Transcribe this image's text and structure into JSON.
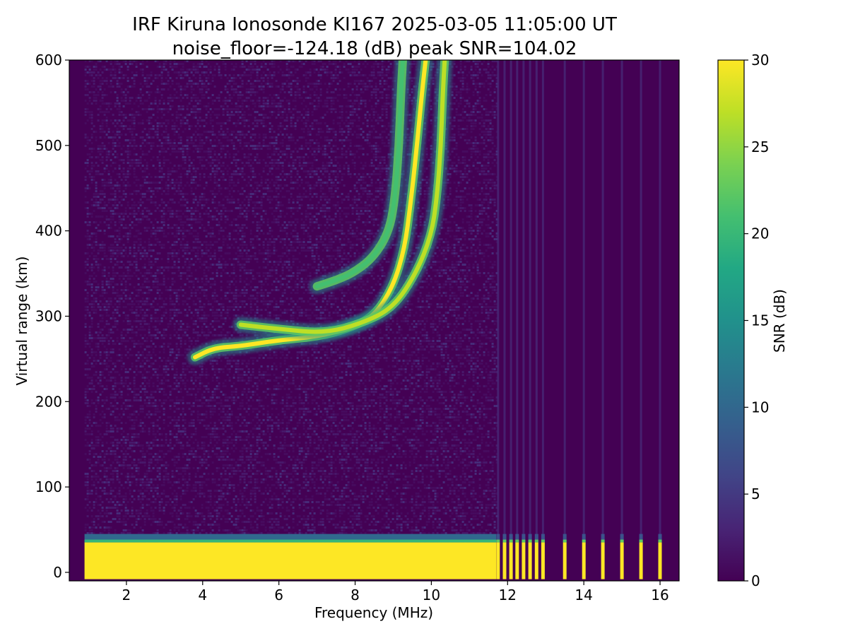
{
  "chart_data": {
    "type": "heatmap",
    "title": "IRF Kiruna Ionosonde KI167 2025-03-05 11:05:00  UT",
    "subtitle": "noise_floor=-124.18 (dB) peak SNR=104.02",
    "xlabel": "Frequency (MHz)",
    "ylabel": "Virtual range (km)",
    "colorbar_label": "SNR (dB)",
    "xlim": [
      0.5,
      16.5
    ],
    "ylim": [
      -10,
      600
    ],
    "clim": [
      0,
      30
    ],
    "colormap": "viridis",
    "background_color": "#440154",
    "x_ticks": [
      2,
      4,
      6,
      8,
      10,
      12,
      14,
      16
    ],
    "y_ticks": [
      0,
      100,
      200,
      300,
      400,
      500,
      600
    ],
    "colorbar_ticks": [
      0,
      5,
      10,
      15,
      20,
      25,
      30
    ],
    "sweep_start_mhz": 0.9,
    "dense_sweep_end_mhz": 11.7,
    "ground_band": {
      "range_km": [
        -8,
        35
      ],
      "snr_db": 30
    },
    "sparse_channels_mhz": [
      11.75,
      11.92,
      12.09,
      12.25,
      12.42,
      12.59,
      12.76,
      12.93,
      13.5,
      14.0,
      14.5,
      15.0,
      15.5,
      16.0
    ],
    "traces": [
      {
        "points": [
          [
            3.8,
            252
          ],
          [
            4.3,
            263
          ],
          [
            5.0,
            265
          ],
          [
            6.0,
            272
          ],
          [
            7.0,
            276
          ],
          [
            7.8,
            285
          ],
          [
            8.5,
            300
          ],
          [
            9.0,
            335
          ],
          [
            9.3,
            380
          ],
          [
            9.45,
            430
          ],
          [
            9.6,
            490
          ],
          [
            9.75,
            560
          ],
          [
            9.85,
            600
          ]
        ],
        "snr_db": 30
      },
      {
        "points": [
          [
            5.0,
            290
          ],
          [
            6.0,
            285
          ],
          [
            7.2,
            280
          ],
          [
            8.2,
            292
          ],
          [
            9.0,
            310
          ],
          [
            9.6,
            350
          ],
          [
            10.0,
            395
          ],
          [
            10.15,
            440
          ],
          [
            10.25,
            500
          ],
          [
            10.3,
            560
          ],
          [
            10.35,
            600
          ]
        ],
        "snr_db": 27
      },
      {
        "points": [
          [
            7.0,
            335
          ],
          [
            7.5,
            342
          ],
          [
            8.0,
            352
          ],
          [
            8.5,
            370
          ],
          [
            8.9,
            400
          ],
          [
            9.05,
            440
          ],
          [
            9.15,
            500
          ],
          [
            9.2,
            560
          ],
          [
            9.25,
            600
          ]
        ],
        "snr_db": 20
      }
    ]
  }
}
